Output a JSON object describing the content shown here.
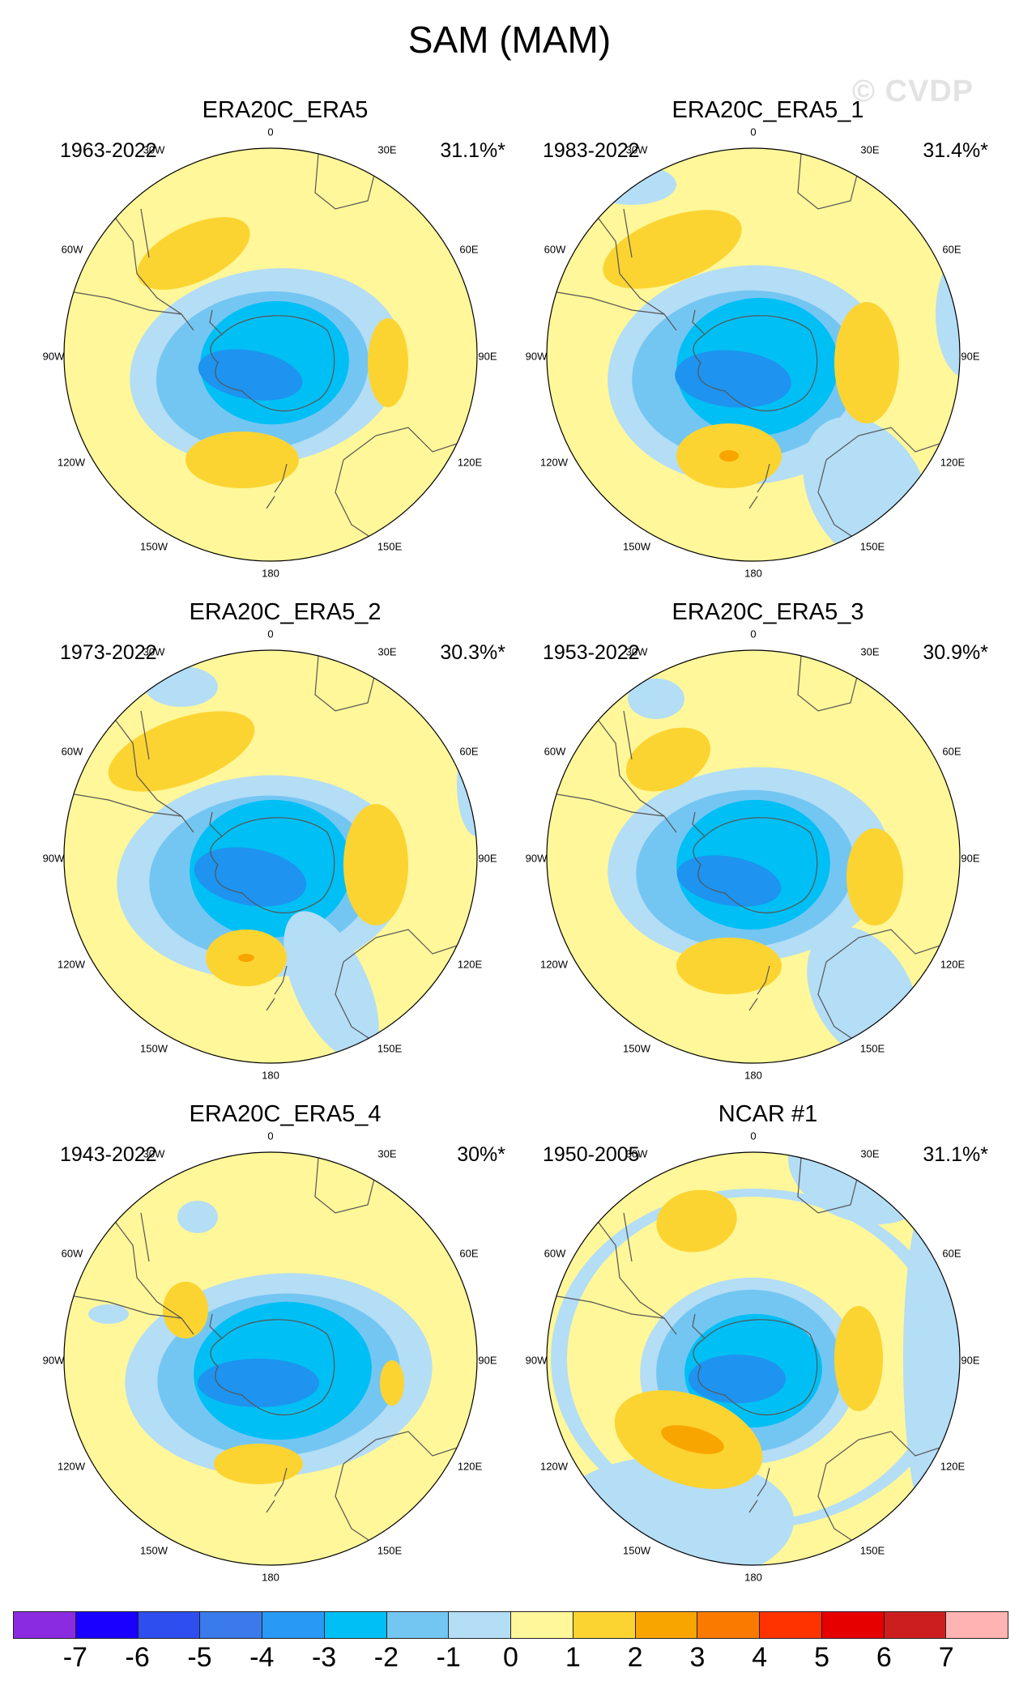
{
  "title": "SAM (MAM)",
  "watermark": "© CVDP",
  "lon_labels": [
    "0",
    "30E",
    "60E",
    "90E",
    "120E",
    "150E",
    "180",
    "150W",
    "120W",
    "90W",
    "60W",
    "30W"
  ],
  "palette": {
    "ocean": "#fff799",
    "n1": "#b4ddf6",
    "n2": "#74c6f2",
    "n3": "#00bff4",
    "n4": "#1e93ef",
    "p1": "#fcd431",
    "p2": "#f9a500",
    "coast": "#555555"
  },
  "panels": [
    {
      "title": "ERA20C_ERA5",
      "years": "1963-2022",
      "pct": "31.1%*"
    },
    {
      "title": "ERA20C_ERA5_1",
      "years": "1983-2022",
      "pct": "31.4%*"
    },
    {
      "title": "ERA20C_ERA5_2",
      "years": "1973-2022",
      "pct": "30.3%*"
    },
    {
      "title": "ERA20C_ERA5_3",
      "years": "1953-2022",
      "pct": "30.9%*"
    },
    {
      "title": "ERA20C_ERA5_4",
      "years": "1943-2022",
      "pct": "30%*"
    },
    {
      "title": "NCAR #1",
      "years": "1950-2005",
      "pct": "31.1%*"
    }
  ],
  "colorbar": {
    "colors": [
      "#8a2be2",
      "#1a00ff",
      "#2e4ef0",
      "#3a7aea",
      "#2899f5",
      "#00bff4",
      "#74c6f2",
      "#b4ddf6",
      "#fff799",
      "#fcd431",
      "#f9a500",
      "#fa7a00",
      "#ff3300",
      "#e60000",
      "#cc1e1e",
      "#ffb3b3"
    ],
    "labels": [
      "-7",
      "-6",
      "-5",
      "-4",
      "-3",
      "-2",
      "-1",
      "0",
      "1",
      "2",
      "3",
      "4",
      "5",
      "6",
      "7"
    ]
  }
}
